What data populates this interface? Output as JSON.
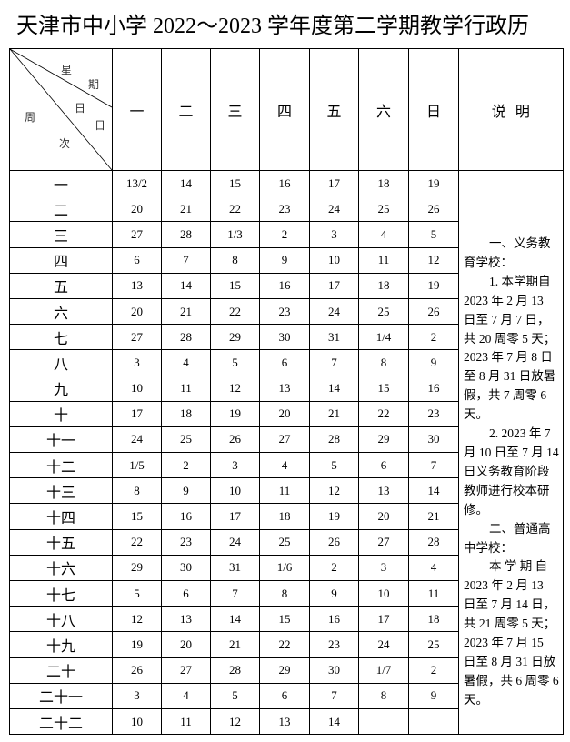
{
  "title": "天津市中小学 2022～2023 学年度第二学期教学行政历",
  "header": {
    "corner": {
      "top": [
        "星",
        "期"
      ],
      "middle": [
        "日",
        "日"
      ],
      "left": [
        "周",
        "次"
      ]
    },
    "days": [
      "一",
      "二",
      "三",
      "四",
      "五",
      "六",
      "日"
    ],
    "notes_label": "说  明"
  },
  "rows": [
    {
      "week": "一",
      "days": [
        "13/2",
        "14",
        "15",
        "16",
        "17",
        "18",
        "19"
      ]
    },
    {
      "week": "二",
      "days": [
        "20",
        "21",
        "22",
        "23",
        "24",
        "25",
        "26"
      ]
    },
    {
      "week": "三",
      "days": [
        "27",
        "28",
        "1/3",
        "2",
        "3",
        "4",
        "5"
      ]
    },
    {
      "week": "四",
      "days": [
        "6",
        "7",
        "8",
        "9",
        "10",
        "11",
        "12"
      ]
    },
    {
      "week": "五",
      "days": [
        "13",
        "14",
        "15",
        "16",
        "17",
        "18",
        "19"
      ]
    },
    {
      "week": "六",
      "days": [
        "20",
        "21",
        "22",
        "23",
        "24",
        "25",
        "26"
      ]
    },
    {
      "week": "七",
      "days": [
        "27",
        "28",
        "29",
        "30",
        "31",
        "1/4",
        "2"
      ]
    },
    {
      "week": "八",
      "days": [
        "3",
        "4",
        "5",
        "6",
        "7",
        "8",
        "9"
      ]
    },
    {
      "week": "九",
      "days": [
        "10",
        "11",
        "12",
        "13",
        "14",
        "15",
        "16"
      ]
    },
    {
      "week": "十",
      "days": [
        "17",
        "18",
        "19",
        "20",
        "21",
        "22",
        "23"
      ]
    },
    {
      "week": "十一",
      "days": [
        "24",
        "25",
        "26",
        "27",
        "28",
        "29",
        "30"
      ]
    },
    {
      "week": "十二",
      "days": [
        "1/5",
        "2",
        "3",
        "4",
        "5",
        "6",
        "7"
      ]
    },
    {
      "week": "十三",
      "days": [
        "8",
        "9",
        "10",
        "11",
        "12",
        "13",
        "14"
      ]
    },
    {
      "week": "十四",
      "days": [
        "15",
        "16",
        "17",
        "18",
        "19",
        "20",
        "21"
      ]
    },
    {
      "week": "十五",
      "days": [
        "22",
        "23",
        "24",
        "25",
        "26",
        "27",
        "28"
      ]
    },
    {
      "week": "十六",
      "days": [
        "29",
        "30",
        "31",
        "1/6",
        "2",
        "3",
        "4"
      ]
    },
    {
      "week": "十七",
      "days": [
        "5",
        "6",
        "7",
        "8",
        "9",
        "10",
        "11"
      ]
    },
    {
      "week": "十八",
      "days": [
        "12",
        "13",
        "14",
        "15",
        "16",
        "17",
        "18"
      ]
    },
    {
      "week": "十九",
      "days": [
        "19",
        "20",
        "21",
        "22",
        "23",
        "24",
        "25"
      ]
    },
    {
      "week": "二十",
      "days": [
        "26",
        "27",
        "28",
        "29",
        "30",
        "1/7",
        "2"
      ]
    },
    {
      "week": "二十一",
      "days": [
        "3",
        "4",
        "5",
        "6",
        "7",
        "8",
        "9"
      ]
    },
    {
      "week": "二十二",
      "days": [
        "10",
        "11",
        "12",
        "13",
        "14",
        "",
        ""
      ]
    }
  ],
  "notes": [
    {
      "text": "一、义务教",
      "indent": true
    },
    {
      "text": "育学校：",
      "indent": false
    },
    {
      "text": "1. 本学期自",
      "indent": true
    },
    {
      "text": "2023 年 2 月 13",
      "indent": false
    },
    {
      "text": "日至 7 月 7 日，",
      "indent": false
    },
    {
      "text": "共 20 周零 5 天；",
      "indent": false
    },
    {
      "text": "2023 年 7 月 8 日",
      "indent": false
    },
    {
      "text": "至 8 月 31 日放暑",
      "indent": false
    },
    {
      "text": "假，共 7 周零 6",
      "indent": false
    },
    {
      "text": "天。",
      "indent": false
    },
    {
      "text": "2. 2023 年 7",
      "indent": true
    },
    {
      "text": "月 10 日至 7 月 14",
      "indent": false
    },
    {
      "text": "日义务教育阶段",
      "indent": false
    },
    {
      "text": "教师进行校本研",
      "indent": false
    },
    {
      "text": "修。",
      "indent": false
    },
    {
      "text": "二、普通高",
      "indent": true
    },
    {
      "text": "中学校：",
      "indent": false
    },
    {
      "text": "本 学 期 自",
      "indent": true
    },
    {
      "text": "2023 年 2 月 13",
      "indent": false
    },
    {
      "text": "日至 7 月 14 日，",
      "indent": false
    },
    {
      "text": "共 21 周零 5 天；",
      "indent": false
    },
    {
      "text": "2023 年 7 月 15",
      "indent": false
    },
    {
      "text": "日至 8 月 31 日放",
      "indent": false
    },
    {
      "text": "暑假，共 6 周零 6",
      "indent": false
    },
    {
      "text": "天。",
      "indent": false
    }
  ]
}
